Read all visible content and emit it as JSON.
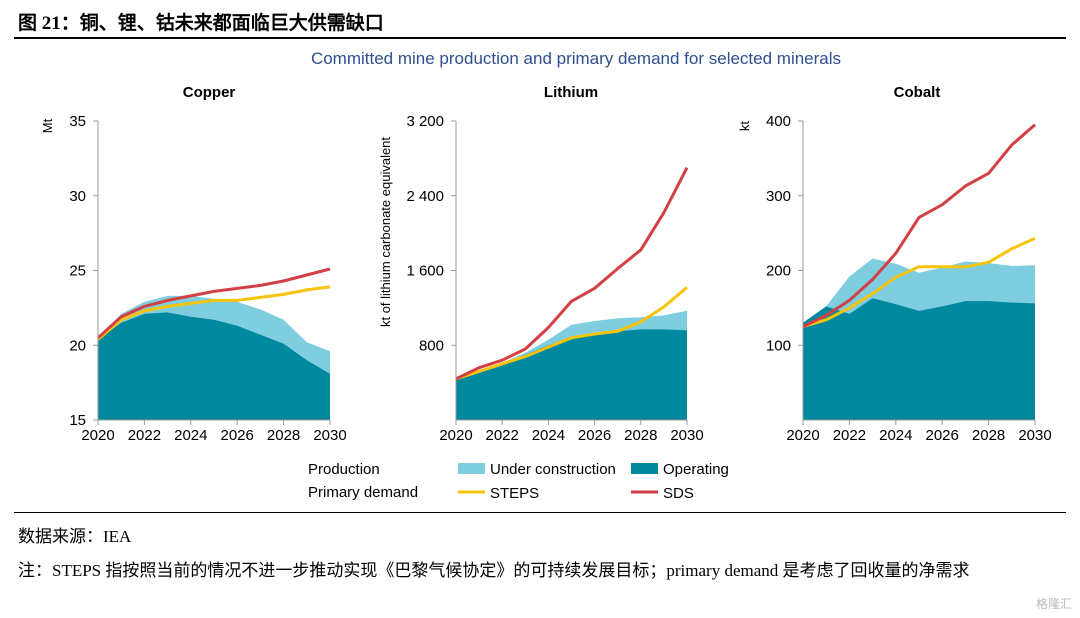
{
  "figure_title": "图 21：铜、锂、钴未来都面临巨大供需缺口",
  "source_text": "数据来源：IEA",
  "note_text": "注：STEPS 指按照当前的情况不进一步推动实现《巴黎气候协定》的可持续发展目标；primary demand 是考虑了回收量的净需求",
  "watermark": "格隆汇",
  "colors": {
    "under_construction": "#7fcee0",
    "operating": "#00889e",
    "steps": "#f6c40c",
    "sds": "#d23f45",
    "chart_title": "#2f4f8f"
  },
  "legend": {
    "production_label": "Production",
    "primary_demand_label": "Primary demand",
    "under_construction": "Under construction",
    "operating": "Operating",
    "steps": "STEPS",
    "sds": "SDS"
  },
  "chart_data": [
    {
      "type": "area",
      "title": "Committed mine production and primary demand for selected minerals",
      "subtitle": "Copper",
      "xlabel": "",
      "ylabel": "Mt",
      "x": [
        2020,
        2021,
        2022,
        2023,
        2024,
        2025,
        2026,
        2027,
        2028,
        2029,
        2030
      ],
      "xticks": [
        "2020",
        "2022",
        "2024",
        "2026",
        "2028",
        "2030"
      ],
      "yticks": [
        "15",
        "20",
        "25",
        "30",
        "35"
      ],
      "ylim": [
        15,
        35
      ],
      "grid": false,
      "series": [
        {
          "name": "Operating",
          "kind": "area",
          "values": [
            20.4,
            21.5,
            22.1,
            22.2,
            21.9,
            21.7,
            21.3,
            20.7,
            20.1,
            19.0,
            18.1
          ]
        },
        {
          "name": "Under construction",
          "kind": "area",
          "values": [
            20.5,
            22.1,
            22.9,
            23.3,
            23.3,
            23.1,
            22.9,
            22.4,
            21.7,
            20.2,
            19.6
          ]
        },
        {
          "name": "STEPS",
          "kind": "line",
          "values": [
            20.4,
            21.7,
            22.3,
            22.6,
            22.8,
            23.0,
            23.0,
            23.2,
            23.4,
            23.7,
            23.9
          ]
        },
        {
          "name": "SDS",
          "kind": "line",
          "values": [
            20.5,
            21.9,
            22.6,
            23.0,
            23.3,
            23.6,
            23.8,
            24.0,
            24.3,
            24.7,
            25.1
          ]
        }
      ]
    },
    {
      "type": "area",
      "subtitle": "Lithium",
      "xlabel": "",
      "ylabel": "kt of lithium carbonate equivalent",
      "x": [
        2020,
        2021,
        2022,
        2023,
        2024,
        2025,
        2026,
        2027,
        2028,
        2029,
        2030
      ],
      "xticks": [
        "2020",
        "2022",
        "2024",
        "2026",
        "2028",
        "2030"
      ],
      "yticks": [
        "800",
        "1 600",
        "2 400",
        "3 200"
      ],
      "ylim": [
        0,
        3200
      ],
      "grid": false,
      "series": [
        {
          "name": "Operating",
          "kind": "area",
          "values": [
            440,
            520,
            600,
            700,
            800,
            880,
            930,
            950,
            970,
            970,
            960
          ]
        },
        {
          "name": "Under construction",
          "kind": "area",
          "values": [
            440,
            520,
            610,
            720,
            860,
            1020,
            1060,
            1090,
            1100,
            1120,
            1170
          ]
        },
        {
          "name": "STEPS",
          "kind": "line",
          "values": [
            440,
            520,
            600,
            680,
            780,
            880,
            920,
            950,
            1050,
            1210,
            1420
          ]
        },
        {
          "name": "SDS",
          "kind": "line",
          "values": [
            440,
            560,
            640,
            760,
            990,
            1270,
            1410,
            1620,
            1820,
            2220,
            2700
          ]
        }
      ]
    },
    {
      "type": "area",
      "subtitle": "Cobalt",
      "xlabel": "",
      "ylabel": "kt",
      "x": [
        2020,
        2021,
        2022,
        2023,
        2024,
        2025,
        2026,
        2027,
        2028,
        2029,
        2030
      ],
      "xticks": [
        "2020",
        "2022",
        "2024",
        "2026",
        "2028",
        "2030"
      ],
      "yticks": [
        "100",
        "200",
        "300",
        "400"
      ],
      "ylim": [
        0,
        400
      ],
      "grid": false,
      "series": [
        {
          "name": "Operating",
          "kind": "area",
          "values": [
            130,
            152,
            142,
            163,
            155,
            146,
            152,
            159,
            159,
            157,
            156
          ]
        },
        {
          "name": "Under construction",
          "kind": "area",
          "values": [
            130,
            152,
            192,
            216,
            209,
            197,
            204,
            212,
            210,
            206,
            207
          ]
        },
        {
          "name": "STEPS",
          "kind": "line",
          "values": [
            125,
            134,
            150,
            169,
            191,
            205,
            205,
            205,
            211,
            229,
            243
          ]
        },
        {
          "name": "SDS",
          "kind": "line",
          "values": [
            125,
            140,
            160,
            188,
            223,
            271,
            288,
            313,
            330,
            368,
            395
          ]
        }
      ]
    }
  ]
}
